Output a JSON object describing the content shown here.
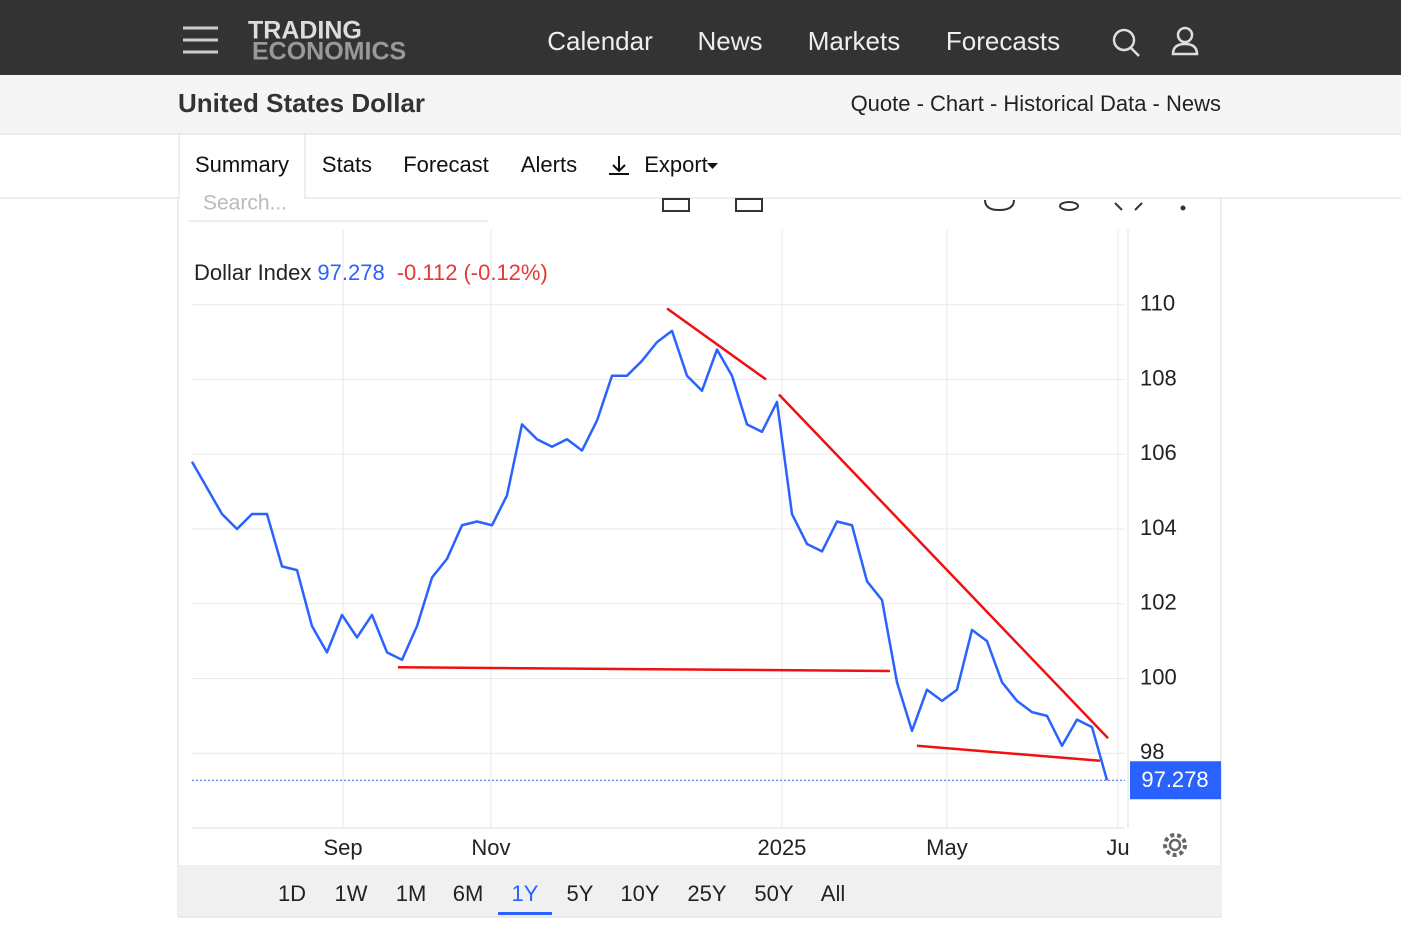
{
  "nav": {
    "logo": [
      "TRADING",
      "ECONOMICS"
    ],
    "links": [
      "Calendar",
      "News",
      "Markets",
      "Forecasts"
    ]
  },
  "header": {
    "title": "United States Dollar",
    "links": "Quote - Chart - Historical Data - News"
  },
  "tabs": [
    "Summary",
    "Stats",
    "Forecast",
    "Alerts",
    "Export"
  ],
  "search_placeholder": "Search...",
  "ranges": [
    "1D",
    "1W",
    "1M",
    "6M",
    "1Y",
    "5Y",
    "10Y",
    "25Y",
    "50Y",
    "All"
  ],
  "active_range": "1Y",
  "chart_data": {
    "type": "line",
    "quote": {
      "price": "97.278",
      "change": "-0.112",
      "change_pct": "(-0.12%)"
    },
    "series": [
      {
        "name": "Dollar Index",
        "color": "#2962ff",
        "values": [
          105.8,
          105.1,
          104.4,
          104.0,
          104.4,
          104.4,
          103.0,
          102.9,
          101.4,
          100.7,
          101.7,
          101.1,
          101.7,
          100.7,
          100.5,
          101.4,
          102.7,
          103.2,
          104.1,
          104.2,
          104.1,
          104.9,
          106.8,
          106.4,
          106.2,
          106.4,
          106.1,
          106.9,
          108.1,
          108.1,
          108.5,
          109.0,
          109.3,
          108.1,
          107.7,
          108.8,
          108.1,
          106.8,
          106.6,
          107.4,
          104.4,
          103.6,
          103.4,
          104.2,
          104.1,
          102.6,
          102.1,
          99.9,
          98.6,
          99.7,
          99.4,
          99.7,
          101.3,
          101.0,
          99.9,
          99.4,
          99.1,
          99.0,
          98.2,
          98.9,
          98.7,
          97.278
        ]
      }
    ],
    "xlim": [
      0,
      62.2
    ],
    "xticks": [
      {
        "value": 10.07,
        "label": "Sep"
      },
      {
        "value": 19.93,
        "label": "Nov"
      },
      {
        "value": 39.33,
        "label": "2025"
      },
      {
        "value": 50.33,
        "label": "May"
      },
      {
        "value": 61.73,
        "label": "Ju"
      }
    ],
    "ylim": [
      96,
      112
    ],
    "yticks": [
      98,
      100,
      102,
      104,
      106,
      108,
      110
    ],
    "grid": true,
    "trendlines": [
      {
        "color": "#ee1111",
        "points": [
          [
            31.67,
            109.9
          ],
          [
            38.27,
            108.0
          ]
        ]
      },
      {
        "color": "#ee1111",
        "points": [
          [
            39.13,
            107.6
          ],
          [
            61.07,
            98.4
          ]
        ]
      },
      {
        "color": "#ee1111",
        "points": [
          [
            13.73,
            100.3
          ],
          [
            46.53,
            100.2
          ]
        ]
      },
      {
        "color": "#ee1111",
        "points": [
          [
            48.33,
            98.2
          ],
          [
            60.53,
            97.8
          ]
        ]
      }
    ]
  }
}
